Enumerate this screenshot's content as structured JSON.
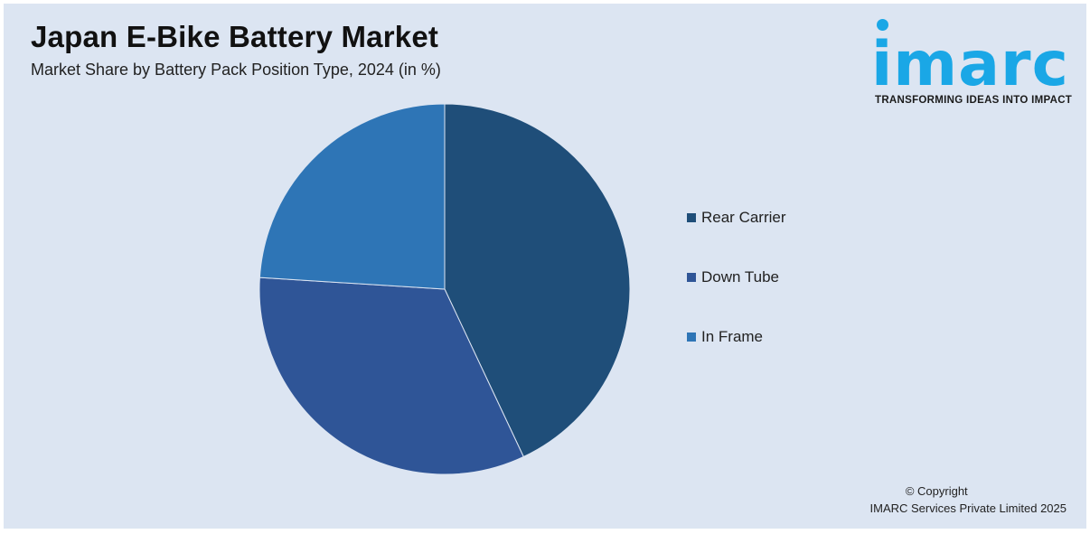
{
  "header": {
    "title": "Japan E-Bike Battery Market",
    "subtitle": "Market Share by Battery Pack Position Type, 2024 (in %)"
  },
  "logo": {
    "word": "imarc",
    "tagline": "TRANSFORMING IDEAS INTO IMPACT",
    "color": "#1aa7e6"
  },
  "chart_data": {
    "type": "pie",
    "categories": [
      "Rear Carrier",
      "Down Tube",
      "In Frame"
    ],
    "values": [
      43,
      33,
      24
    ],
    "colors": [
      "#1f4e79",
      "#2f5597",
      "#2e75b6"
    ],
    "start_angle_deg": 0,
    "direction": "clockwise",
    "legend_placement": "right"
  },
  "footer": {
    "copyright_line1": "© Copyright",
    "copyright_line2": "IMARC Services Private Limited 2025"
  }
}
